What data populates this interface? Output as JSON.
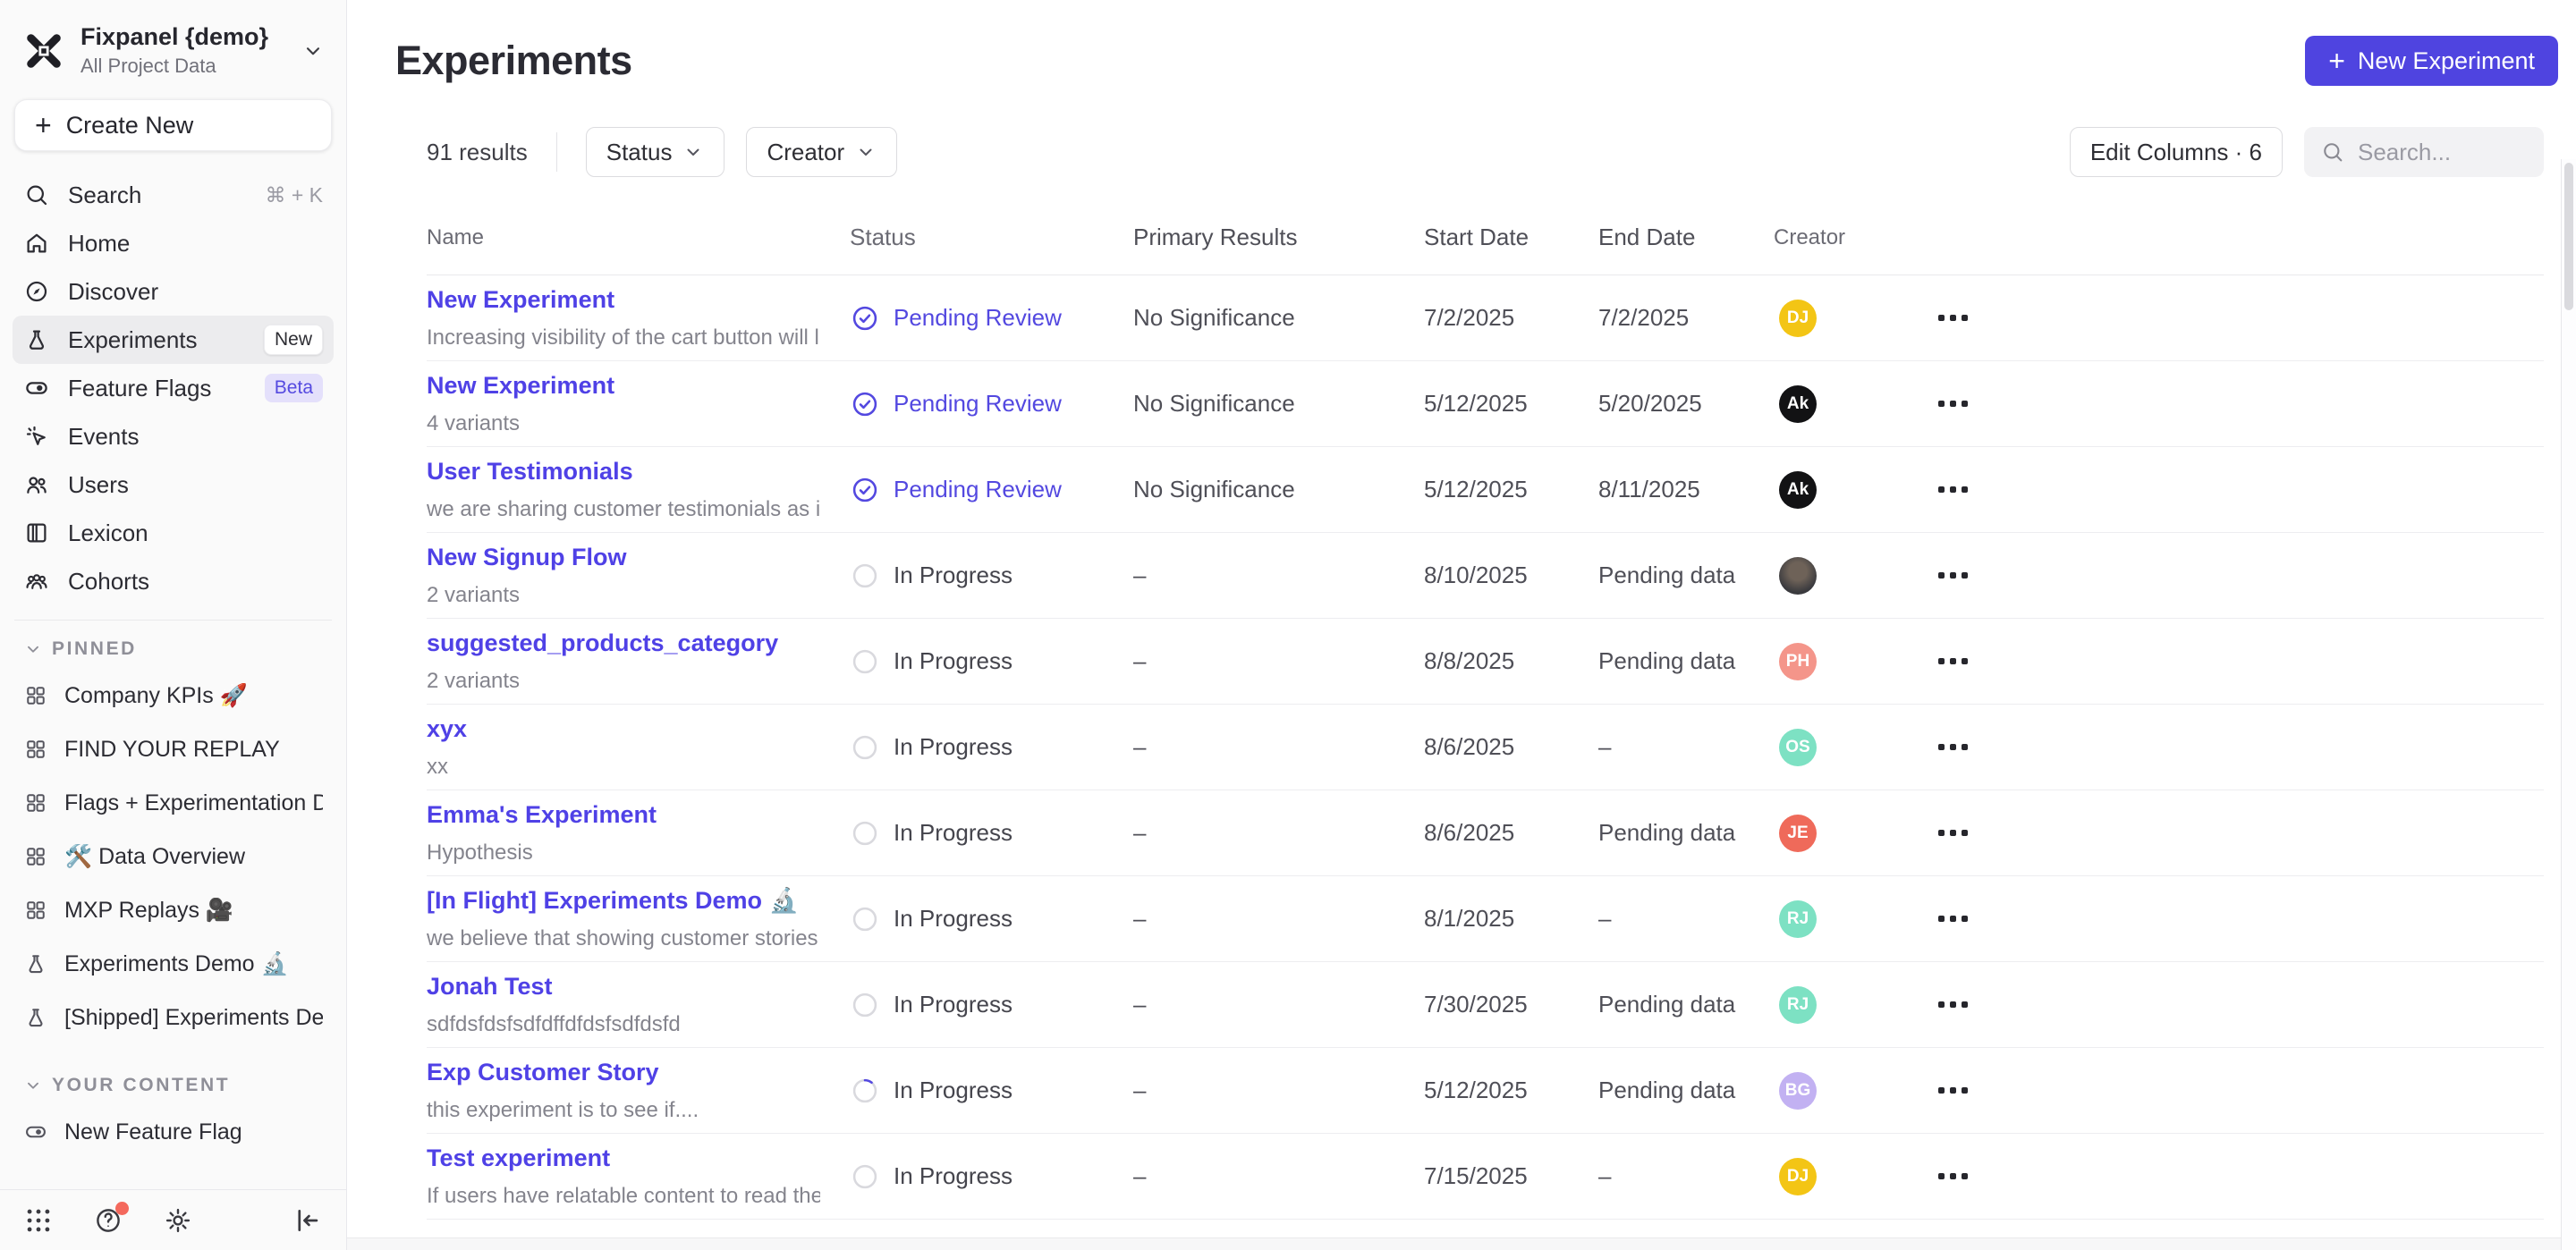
{
  "workspace": {
    "name": "Fixpanel {demo}",
    "subtitle": "All Project Data"
  },
  "sidebar": {
    "create_new": "Create New",
    "nav": [
      {
        "icon": "search",
        "label": "Search",
        "shortcut": "⌘ + K"
      },
      {
        "icon": "home",
        "label": "Home"
      },
      {
        "icon": "discover",
        "label": "Discover"
      },
      {
        "icon": "flask",
        "label": "Experiments",
        "badge": "New",
        "badge_style": "new",
        "active": true
      },
      {
        "icon": "toggle",
        "label": "Feature Flags",
        "badge": "Beta",
        "badge_style": "beta"
      },
      {
        "icon": "events",
        "label": "Events"
      },
      {
        "icon": "users",
        "label": "Users"
      },
      {
        "icon": "lexicon",
        "label": "Lexicon"
      },
      {
        "icon": "cohorts",
        "label": "Cohorts"
      }
    ],
    "pinned_header": "PINNED",
    "pinned": [
      {
        "icon": "grid",
        "label": "Company KPIs 🚀"
      },
      {
        "icon": "grid",
        "label": "FIND YOUR REPLAY"
      },
      {
        "icon": "grid",
        "label": "Flags + Experimentation Demo 🧪"
      },
      {
        "icon": "grid",
        "label": "🛠️ Data Overview"
      },
      {
        "icon": "grid",
        "label": "MXP Replays 🎥"
      },
      {
        "icon": "flask",
        "label": "Experiments Demo 🔬"
      },
      {
        "icon": "flask",
        "label": "[Shipped] Experiments Demo ✏️"
      }
    ],
    "your_content_header": "YOUR CONTENT",
    "your_content": [
      {
        "icon": "toggle",
        "label": "New Feature Flag"
      }
    ]
  },
  "header": {
    "title": "Experiments",
    "new_experiment_label": "New Experiment"
  },
  "toolbar": {
    "results": "91 results",
    "filters": [
      "Status",
      "Creator"
    ],
    "edit_columns": "Edit Columns · 6",
    "search_placeholder": "Search..."
  },
  "table": {
    "columns": [
      "Name",
      "Status",
      "Primary Results",
      "Start Date",
      "End Date",
      "Creator"
    ],
    "rows": [
      {
        "name": "New Experiment",
        "subtitle": "Increasing visibility of the cart button will l...",
        "status": "Pending Review",
        "status_kind": "review",
        "primary": "No Significance",
        "start": "7/2/2025",
        "end": "7/2/2025",
        "creator": {
          "type": "initials",
          "text": "DJ",
          "bg": "#f3c515"
        }
      },
      {
        "name": "New Experiment",
        "subtitle": "4 variants",
        "status": "Pending Review",
        "status_kind": "review",
        "primary": "No Significance",
        "start": "5/12/2025",
        "end": "5/20/2025",
        "creator": {
          "type": "initials",
          "text": "Ak",
          "bg": "#121214"
        }
      },
      {
        "name": "User Testimonials",
        "subtitle": "we are sharing customer testimonials as in...",
        "status": "Pending Review",
        "status_kind": "review",
        "primary": "No Significance",
        "start": "5/12/2025",
        "end": "8/11/2025",
        "creator": {
          "type": "initials",
          "text": "Ak",
          "bg": "#121214"
        }
      },
      {
        "name": "New Signup Flow",
        "subtitle": "2 variants",
        "status": "In Progress",
        "status_kind": "progress",
        "primary": "–",
        "start": "8/10/2025",
        "end": "Pending data",
        "creator": {
          "type": "photo",
          "text": "",
          "bg": ""
        }
      },
      {
        "name": "suggested_products_category",
        "subtitle": "2 variants",
        "status": "In Progress",
        "status_kind": "progress",
        "primary": "–",
        "start": "8/8/2025",
        "end": "Pending data",
        "creator": {
          "type": "initials",
          "text": "PH",
          "bg": "#f4958a"
        }
      },
      {
        "name": "xyx",
        "subtitle": "xx",
        "status": "In Progress",
        "status_kind": "progress",
        "primary": "–",
        "start": "8/6/2025",
        "end": "–",
        "creator": {
          "type": "initials",
          "text": "OS",
          "bg": "#7de1c3"
        }
      },
      {
        "name": "Emma's Experiment",
        "subtitle": "Hypothesis",
        "status": "In Progress",
        "status_kind": "progress",
        "primary": "–",
        "start": "8/6/2025",
        "end": "Pending data",
        "creator": {
          "type": "initials",
          "text": "JE",
          "bg": "#ef6a5a"
        }
      },
      {
        "name": "[In Flight] Experiments Demo 🔬",
        "subtitle": "we believe that showing customer stories ...",
        "status": "In Progress",
        "status_kind": "progress",
        "primary": "–",
        "start": "8/1/2025",
        "end": "–",
        "creator": {
          "type": "initials",
          "text": "RJ",
          "bg": "#7de1c3"
        }
      },
      {
        "name": "Jonah Test",
        "subtitle": "sdfdsfdsfsdfdffdfdsfsdfdsfd",
        "status": "In Progress",
        "status_kind": "progress",
        "primary": "–",
        "start": "7/30/2025",
        "end": "Pending data",
        "creator": {
          "type": "initials",
          "text": "RJ",
          "bg": "#7de1c3"
        }
      },
      {
        "name": "Exp Customer Story",
        "subtitle": "this experiment is to see if....",
        "status": "In Progress",
        "status_kind": "spinner",
        "primary": "–",
        "start": "5/12/2025",
        "end": "Pending data",
        "creator": {
          "type": "initials",
          "text": "BG",
          "bg": "#c2b1f2"
        }
      },
      {
        "name": "Test experiment",
        "subtitle": "If users have relatable content to read they...",
        "status": "In Progress",
        "status_kind": "progress",
        "primary": "–",
        "start": "7/15/2025",
        "end": "–",
        "creator": {
          "type": "initials",
          "text": "DJ",
          "bg": "#f3c515"
        }
      }
    ]
  },
  "colors": {
    "accent": "#4f44e0",
    "link": "#4f41e6",
    "beta_badge_bg": "#e4e0fb",
    "pending_review": "#5348e0",
    "sidebar_bg": "#fafafa",
    "help_dot": "#f4695d"
  }
}
